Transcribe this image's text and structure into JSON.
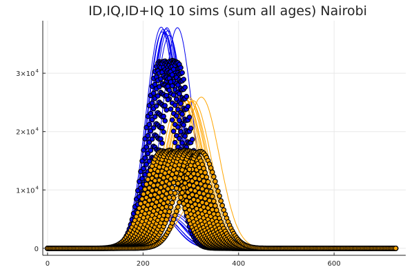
{
  "chart_data": {
    "type": "line",
    "title": "ID,IQ,ID+IQ 10 sims (sum all ages) Nairobi",
    "xlabel": "",
    "ylabel": "",
    "xlim": [
      -10,
      750
    ],
    "ylim": [
      -1200,
      39000
    ],
    "grid": true,
    "legend": "none",
    "x_ticks": [
      {
        "value": 0,
        "label": "0"
      },
      {
        "value": 200,
        "label": "200"
      },
      {
        "value": 400,
        "label": "400"
      },
      {
        "value": 600,
        "label": "600"
      }
    ],
    "y_ticks": [
      {
        "value": 0,
        "label": "0",
        "base": "",
        "exp": ""
      },
      {
        "value": 10000,
        "label": "",
        "base": "1×10",
        "exp": "4"
      },
      {
        "value": 20000,
        "label": "",
        "base": "2×10",
        "exp": "4"
      },
      {
        "value": 30000,
        "label": "",
        "base": "3×10",
        "exp": "4"
      }
    ],
    "x_range": [
      0,
      730
    ],
    "groups": [
      {
        "color": "#0000ee",
        "style": "line",
        "peaks": [
          37900,
          37500,
          37000,
          37800,
          36800,
          37300,
          36500,
          37600,
          37100,
          37800
        ],
        "peak_days": [
          238,
          242,
          246,
          250,
          245,
          252,
          255,
          248,
          240,
          272
        ],
        "spread": 32
      },
      {
        "color": "#0000ee",
        "style": "line",
        "peaks": [
          6000,
          5600,
          5800,
          5200,
          5400,
          5700,
          5000,
          5500,
          5300,
          5900
        ],
        "peak_days": [
          232,
          240,
          248,
          256,
          236,
          264,
          244,
          252,
          260,
          268
        ],
        "spread": 36
      },
      {
        "color": "#ffa500",
        "style": "line",
        "peaks": [
          26000,
          25800,
          25500,
          25900,
          25200,
          25600,
          25400,
          25700,
          25300,
          25900
        ],
        "peak_days": [
          278,
          285,
          290,
          296,
          300,
          288,
          282,
          294,
          305,
          322
        ],
        "spread": 38
      },
      {
        "color": "#ffa500",
        "style": "line",
        "peaks": [
          9500,
          9200,
          9000,
          9400,
          8800,
          9300,
          9100,
          8700,
          9600,
          9000
        ],
        "peak_days": [
          262,
          270,
          278,
          286,
          294,
          300,
          310,
          282,
          274,
          318
        ],
        "spread": 40
      },
      {
        "color": "#0000ee",
        "style": "markers",
        "peaks": [
          32000,
          31800,
          32100,
          31900,
          32000,
          31700,
          32200,
          31900,
          32000,
          31800
        ],
        "peak_days": [
          235,
          240,
          245,
          250,
          255,
          258,
          262,
          265,
          268,
          272
        ],
        "spread": 30
      },
      {
        "color": "#ffa500",
        "style": "markers",
        "peaks": [
          16700,
          16600,
          16800,
          16500,
          16700,
          16600,
          16800,
          16700,
          16500,
          16600
        ],
        "peak_days": [
          240,
          248,
          256,
          264,
          272,
          280,
          288,
          296,
          305,
          320
        ],
        "spread": 36
      }
    ]
  }
}
